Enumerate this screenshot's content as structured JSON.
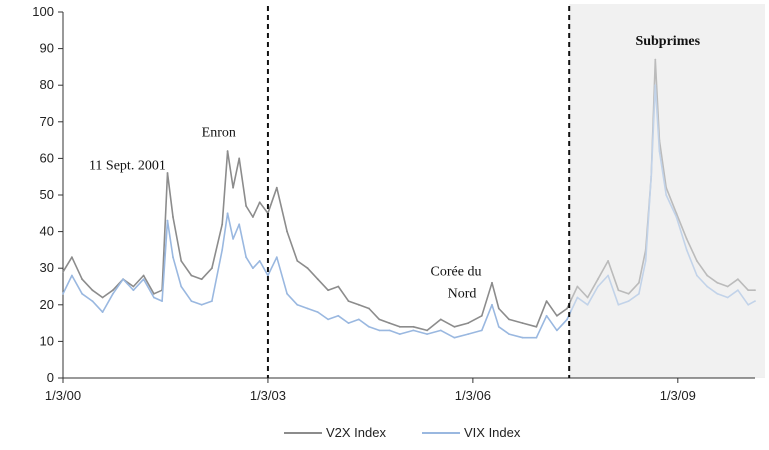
{
  "chart_data": {
    "type": "line",
    "title": "",
    "xlabel": "",
    "ylabel": "",
    "ylim": [
      0,
      100
    ],
    "y_ticks": [
      "0",
      "10",
      "20",
      "30",
      "40",
      "50",
      "60",
      "70",
      "80",
      "90",
      "100"
    ],
    "x_ticks": [
      {
        "label": "1/3/00",
        "t": 2000.17
      },
      {
        "label": "1/3/03",
        "t": 2003.17
      },
      {
        "label": "1/3/06",
        "t": 2006.17
      },
      {
        "label": "1/3/09",
        "t": 2009.17
      }
    ],
    "xlim": [
      2000.17,
      2010.3
    ],
    "grid": false,
    "legend": "bottom",
    "series": [
      {
        "name": "V2X Index",
        "color": "#8c8c8c",
        "points": [
          [
            2000.17,
            29
          ],
          [
            2000.3,
            33
          ],
          [
            2000.45,
            27
          ],
          [
            2000.6,
            24
          ],
          [
            2000.75,
            22
          ],
          [
            2000.9,
            24
          ],
          [
            2001.05,
            27
          ],
          [
            2001.2,
            25
          ],
          [
            2001.35,
            28
          ],
          [
            2001.5,
            23
          ],
          [
            2001.62,
            24
          ],
          [
            2001.7,
            56
          ],
          [
            2001.78,
            44
          ],
          [
            2001.9,
            32
          ],
          [
            2002.05,
            28
          ],
          [
            2002.2,
            27
          ],
          [
            2002.35,
            30
          ],
          [
            2002.5,
            42
          ],
          [
            2002.58,
            62
          ],
          [
            2002.66,
            52
          ],
          [
            2002.75,
            60
          ],
          [
            2002.85,
            47
          ],
          [
            2002.95,
            44
          ],
          [
            2003.05,
            48
          ],
          [
            2003.17,
            45
          ],
          [
            2003.3,
            52
          ],
          [
            2003.45,
            40
          ],
          [
            2003.6,
            32
          ],
          [
            2003.75,
            30
          ],
          [
            2003.9,
            27
          ],
          [
            2004.05,
            24
          ],
          [
            2004.2,
            25
          ],
          [
            2004.35,
            21
          ],
          [
            2004.5,
            20
          ],
          [
            2004.65,
            19
          ],
          [
            2004.8,
            16
          ],
          [
            2004.95,
            15
          ],
          [
            2005.1,
            14
          ],
          [
            2005.3,
            14
          ],
          [
            2005.5,
            13
          ],
          [
            2005.7,
            16
          ],
          [
            2005.9,
            14
          ],
          [
            2006.1,
            15
          ],
          [
            2006.3,
            17
          ],
          [
            2006.45,
            26
          ],
          [
            2006.55,
            19
          ],
          [
            2006.7,
            16
          ],
          [
            2006.9,
            15
          ],
          [
            2007.1,
            14
          ],
          [
            2007.25,
            21
          ],
          [
            2007.4,
            17
          ],
          [
            2007.55,
            19
          ],
          [
            2007.7,
            25
          ],
          [
            2007.85,
            22
          ],
          [
            2008.0,
            27
          ],
          [
            2008.15,
            32
          ],
          [
            2008.3,
            24
          ],
          [
            2008.45,
            23
          ],
          [
            2008.6,
            26
          ],
          [
            2008.7,
            35
          ],
          [
            2008.78,
            55
          ],
          [
            2008.84,
            87
          ],
          [
            2008.9,
            65
          ],
          [
            2009.0,
            52
          ],
          [
            2009.15,
            45
          ],
          [
            2009.3,
            38
          ],
          [
            2009.45,
            32
          ],
          [
            2009.6,
            28
          ],
          [
            2009.75,
            26
          ],
          [
            2009.9,
            25
          ],
          [
            2010.05,
            27
          ],
          [
            2010.2,
            24
          ],
          [
            2010.3,
            24
          ]
        ]
      },
      {
        "name": "VIX Index",
        "color": "#9ab8e0",
        "points": [
          [
            2000.17,
            23
          ],
          [
            2000.3,
            28
          ],
          [
            2000.45,
            23
          ],
          [
            2000.6,
            21
          ],
          [
            2000.75,
            18
          ],
          [
            2000.9,
            23
          ],
          [
            2001.05,
            27
          ],
          [
            2001.2,
            24
          ],
          [
            2001.35,
            27
          ],
          [
            2001.5,
            22
          ],
          [
            2001.62,
            21
          ],
          [
            2001.7,
            43
          ],
          [
            2001.78,
            33
          ],
          [
            2001.9,
            25
          ],
          [
            2002.05,
            21
          ],
          [
            2002.2,
            20
          ],
          [
            2002.35,
            21
          ],
          [
            2002.5,
            35
          ],
          [
            2002.58,
            45
          ],
          [
            2002.66,
            38
          ],
          [
            2002.75,
            42
          ],
          [
            2002.85,
            33
          ],
          [
            2002.95,
            30
          ],
          [
            2003.05,
            32
          ],
          [
            2003.17,
            28
          ],
          [
            2003.3,
            33
          ],
          [
            2003.45,
            23
          ],
          [
            2003.6,
            20
          ],
          [
            2003.75,
            19
          ],
          [
            2003.9,
            18
          ],
          [
            2004.05,
            16
          ],
          [
            2004.2,
            17
          ],
          [
            2004.35,
            15
          ],
          [
            2004.5,
            16
          ],
          [
            2004.65,
            14
          ],
          [
            2004.8,
            13
          ],
          [
            2004.95,
            13
          ],
          [
            2005.1,
            12
          ],
          [
            2005.3,
            13
          ],
          [
            2005.5,
            12
          ],
          [
            2005.7,
            13
          ],
          [
            2005.9,
            11
          ],
          [
            2006.1,
            12
          ],
          [
            2006.3,
            13
          ],
          [
            2006.45,
            20
          ],
          [
            2006.55,
            14
          ],
          [
            2006.7,
            12
          ],
          [
            2006.9,
            11
          ],
          [
            2007.1,
            11
          ],
          [
            2007.25,
            17
          ],
          [
            2007.4,
            13
          ],
          [
            2007.55,
            16
          ],
          [
            2007.7,
            22
          ],
          [
            2007.85,
            20
          ],
          [
            2008.0,
            25
          ],
          [
            2008.15,
            28
          ],
          [
            2008.3,
            20
          ],
          [
            2008.45,
            21
          ],
          [
            2008.6,
            23
          ],
          [
            2008.7,
            32
          ],
          [
            2008.78,
            55
          ],
          [
            2008.84,
            80
          ],
          [
            2008.9,
            62
          ],
          [
            2009.0,
            50
          ],
          [
            2009.15,
            44
          ],
          [
            2009.3,
            35
          ],
          [
            2009.45,
            28
          ],
          [
            2009.6,
            25
          ],
          [
            2009.75,
            23
          ],
          [
            2009.9,
            22
          ],
          [
            2010.05,
            24
          ],
          [
            2010.2,
            20
          ],
          [
            2010.3,
            21
          ]
        ]
      }
    ],
    "vertical_lines": [
      {
        "t": 2003.17,
        "style": "dashed"
      },
      {
        "t": 2007.58,
        "style": "dashed"
      }
    ],
    "shaded_region": {
      "from": 2007.58,
      "to": 2010.3,
      "color": "#efefef"
    },
    "annotations": [
      {
        "text": "11 Sept. 2001",
        "t": 2000.55,
        "y": 57,
        "bold": false
      },
      {
        "text": "Enron",
        "t": 2002.2,
        "y": 66,
        "bold": false
      },
      {
        "text": "Corée du",
        "t": 2005.55,
        "y": 28,
        "bold": false
      },
      {
        "text": "Nord",
        "t": 2005.8,
        "y": 22,
        "bold": false
      },
      {
        "text": "Subprimes",
        "t": 2008.55,
        "y": 91,
        "bold": true
      }
    ]
  }
}
